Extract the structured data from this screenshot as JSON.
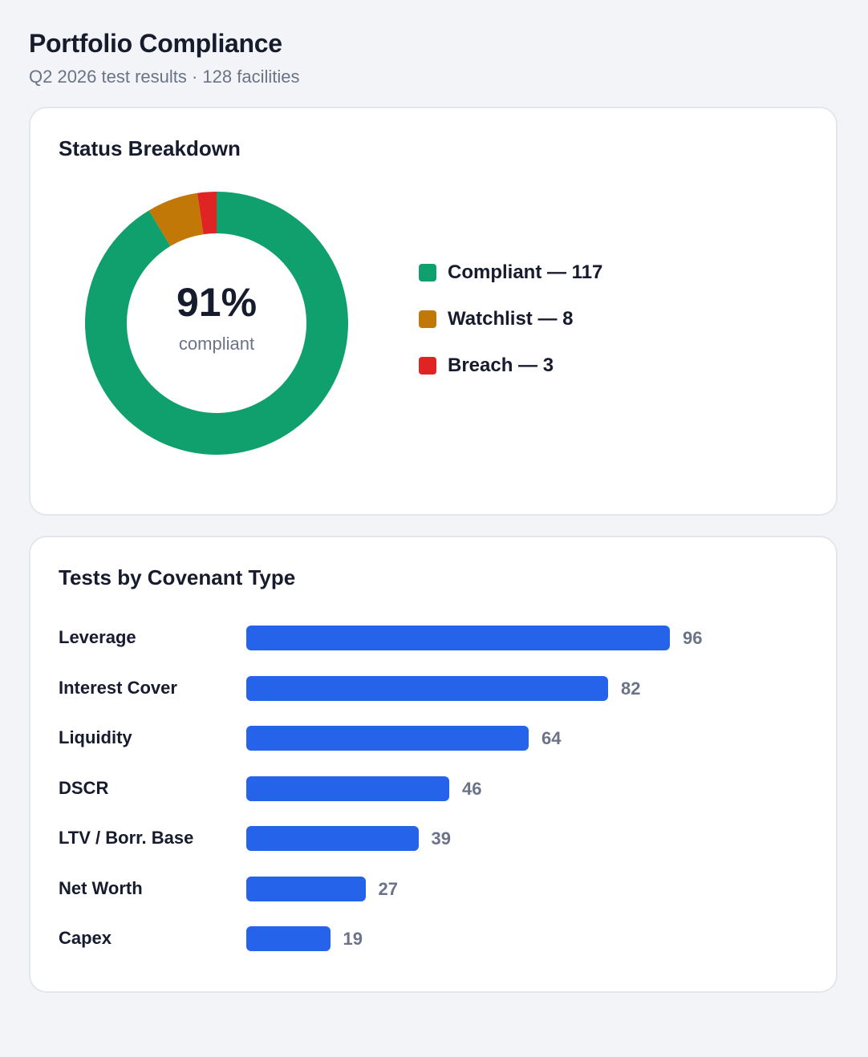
{
  "header": {
    "title": "Portfolio Compliance",
    "subtitle": "Q2 2026 test results · 128 facilities"
  },
  "status_card": {
    "title": "Status Breakdown",
    "center_value": "91%",
    "center_label": "compliant"
  },
  "covenant_card": {
    "title": "Tests by Covenant Type"
  },
  "chart_data": [
    {
      "type": "pie",
      "style": "donut",
      "title": "Status Breakdown",
      "categories": [
        "Compliant",
        "Watchlist",
        "Breach"
      ],
      "values": [
        117,
        8,
        3
      ],
      "colors": [
        "#10a06e",
        "#c27806",
        "#e02424"
      ],
      "legend_labels": [
        "Compliant — 117",
        "Watchlist — 8",
        "Breach — 3"
      ],
      "legend_position": "right",
      "center_text": "91%",
      "center_subtext": "compliant"
    },
    {
      "type": "bar",
      "orientation": "horizontal",
      "title": "Tests by Covenant Type",
      "categories": [
        "Leverage",
        "Interest Cover",
        "Liquidity",
        "DSCR",
        "LTV / Borr. Base",
        "Net Worth",
        "Capex"
      ],
      "values": [
        96,
        82,
        64,
        46,
        39,
        27,
        19
      ],
      "color": "#2563eb",
      "xlim": [
        0,
        96
      ],
      "grid": false,
      "data_labels": true
    }
  ]
}
